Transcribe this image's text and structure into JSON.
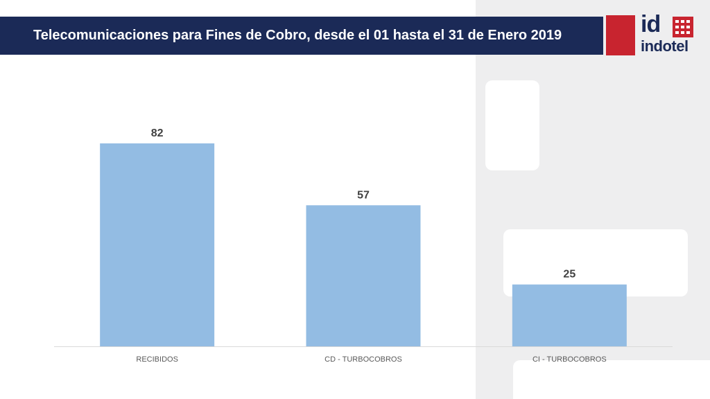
{
  "header": {
    "title": "Telecomunicaciones para Fines de Cobro, desde el 01 hasta el 31 de Enero 2019"
  },
  "logo": {
    "mark": "id",
    "wordmark": "indotel",
    "icon": "keypad-icon"
  },
  "colors": {
    "header_bg": "#1b2a57",
    "bar": "#8db8e2",
    "logo_red": "#c8242f",
    "logo_navy": "#1b2a57"
  },
  "chart_data": {
    "type": "bar",
    "categories": [
      "RECIBIDOS",
      "CD - TURBOCOBROS",
      "CI - TURBOCOBROS"
    ],
    "values": [
      82,
      57,
      25
    ],
    "data_labels": [
      "82",
      "57",
      "25"
    ],
    "title": "",
    "xlabel": "",
    "ylabel": "",
    "ylim": [
      0,
      100
    ],
    "grid": false,
    "legend": "none"
  }
}
